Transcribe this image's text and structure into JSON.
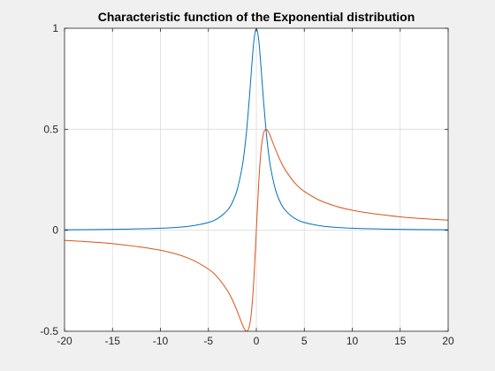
{
  "figure": {
    "background": "#f0f0f0",
    "axes_background": "#ffffff"
  },
  "chart_data": {
    "type": "line",
    "title": "Characteristic function of the Exponential distribution",
    "xlabel": "",
    "ylabel": "",
    "xlim": [
      -20,
      20
    ],
    "ylim": [
      -0.5,
      1
    ],
    "grid": true,
    "legend": "none",
    "x_ticks": [
      -20,
      -15,
      -10,
      -5,
      0,
      5,
      10,
      15,
      20
    ],
    "x_tick_labels": [
      "-20",
      "-15",
      "-10",
      "-5",
      "0",
      "5",
      "10",
      "15",
      "20"
    ],
    "y_ticks": [
      -0.5,
      0,
      0.5,
      1
    ],
    "y_tick_labels": [
      "-0.5",
      "0",
      "0.5",
      "1"
    ],
    "series": [
      {
        "color": "#0072bd",
        "x": [
          -20,
          -15,
          -10,
          -7,
          -5,
          -4,
          -3,
          -2.5,
          -2,
          -1.5,
          -1.25,
          -1,
          -0.75,
          -0.5,
          -0.25,
          0,
          0.25,
          0.5,
          0.75,
          1,
          1.25,
          1.5,
          2,
          2.5,
          3,
          4,
          5,
          7,
          10,
          15,
          20
        ],
        "y": [
          0.0025,
          0.0044,
          0.0099,
          0.02,
          0.0385,
          0.0588,
          0.1,
          0.1379,
          0.2,
          0.3077,
          0.3902,
          0.5,
          0.64,
          0.8,
          0.9412,
          1.0,
          0.9412,
          0.8,
          0.64,
          0.5,
          0.3902,
          0.3077,
          0.2,
          0.1379,
          0.1,
          0.0588,
          0.0385,
          0.02,
          0.0099,
          0.0044,
          0.0025
        ]
      },
      {
        "color": "#d95319",
        "x": [
          -20,
          -15,
          -10,
          -7,
          -5,
          -4,
          -3,
          -2.5,
          -2,
          -1.5,
          -1.25,
          -1,
          -0.75,
          -0.5,
          -0.25,
          0,
          0.25,
          0.5,
          0.75,
          1,
          1.25,
          1.5,
          2,
          2.5,
          3,
          4,
          5,
          7,
          10,
          15,
          20
        ],
        "y": [
          -0.0499,
          -0.0664,
          -0.099,
          -0.14,
          -0.1923,
          -0.2353,
          -0.3,
          -0.3448,
          -0.4,
          -0.4615,
          -0.4878,
          -0.5,
          -0.48,
          -0.4,
          -0.2353,
          0.0,
          0.2353,
          0.4,
          0.48,
          0.5,
          0.4878,
          0.4615,
          0.4,
          0.3448,
          0.3,
          0.2353,
          0.1923,
          0.14,
          0.099,
          0.0664,
          0.0499
        ]
      }
    ]
  }
}
